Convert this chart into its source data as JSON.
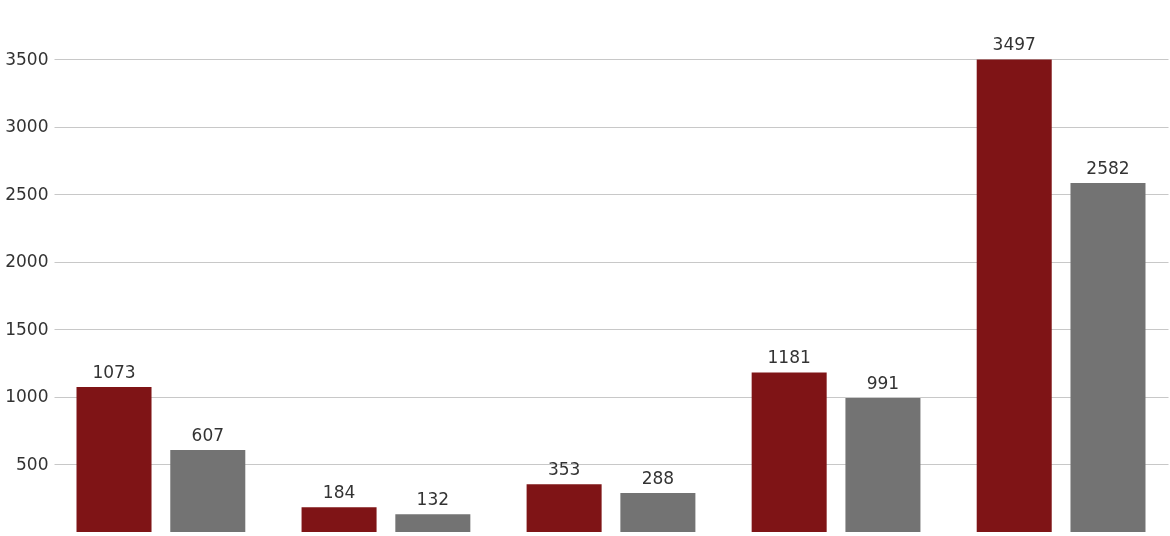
{
  "chart_data": {
    "type": "bar",
    "categories": [
      null,
      null,
      null,
      null,
      null
    ],
    "series": [
      {
        "color": "#7f1416",
        "values": [
          1073,
          184,
          353,
          1181,
          3497
        ]
      },
      {
        "color": "#737373",
        "values": [
          607,
          132,
          288,
          991,
          2582
        ]
      }
    ],
    "ylim": [
      0,
      3500
    ],
    "yticks": [
      500,
      1000,
      1500,
      2000,
      2500,
      3000,
      3500
    ],
    "grid": "y",
    "data_labels": true
  }
}
